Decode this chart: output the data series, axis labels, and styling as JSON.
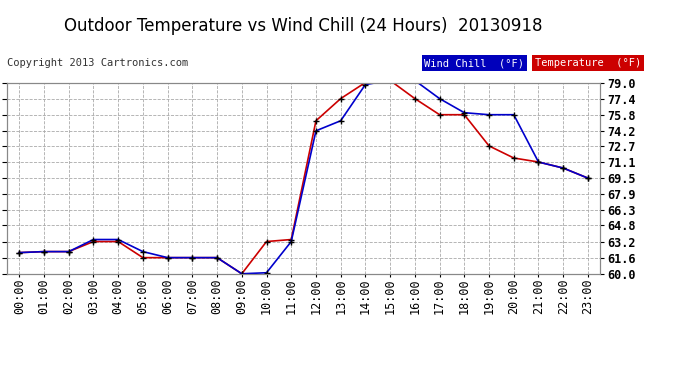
{
  "title": "Outdoor Temperature vs Wind Chill (24 Hours)  20130918",
  "copyright": "Copyright 2013 Cartronics.com",
  "background_color": "#ffffff",
  "plot_bg_color": "#ffffff",
  "grid_color": "#aaaaaa",
  "x_labels": [
    "00:00",
    "01:00",
    "02:00",
    "03:00",
    "04:00",
    "05:00",
    "06:00",
    "07:00",
    "08:00",
    "09:00",
    "10:00",
    "11:00",
    "12:00",
    "13:00",
    "14:00",
    "15:00",
    "16:00",
    "17:00",
    "18:00",
    "19:00",
    "20:00",
    "21:00",
    "22:00",
    "23:00"
  ],
  "y_ticks": [
    60.0,
    61.6,
    63.2,
    64.8,
    66.3,
    67.9,
    69.5,
    71.1,
    72.7,
    74.2,
    75.8,
    77.4,
    79.0
  ],
  "temperature": [
    62.1,
    62.2,
    62.2,
    63.2,
    63.2,
    61.6,
    61.6,
    61.6,
    61.6,
    60.0,
    63.2,
    63.4,
    75.2,
    77.4,
    79.0,
    79.2,
    77.4,
    75.8,
    75.8,
    72.7,
    71.5,
    71.1,
    70.5,
    69.5
  ],
  "wind_chill": [
    62.1,
    62.2,
    62.2,
    63.4,
    63.4,
    62.2,
    61.6,
    61.6,
    61.6,
    60.0,
    60.1,
    63.2,
    74.2,
    75.2,
    78.8,
    79.2,
    79.2,
    77.4,
    76.0,
    75.8,
    75.8,
    71.1,
    70.5,
    69.5
  ],
  "temp_color": "#cc0000",
  "wind_color": "#0000cc",
  "legend_wind_bg": "#0000bb",
  "legend_temp_bg": "#cc0000",
  "marker": "+",
  "marker_color": "#000000",
  "marker_size": 5,
  "title_fontsize": 12,
  "tick_fontsize": 8.5,
  "copy_fontsize": 7.5
}
